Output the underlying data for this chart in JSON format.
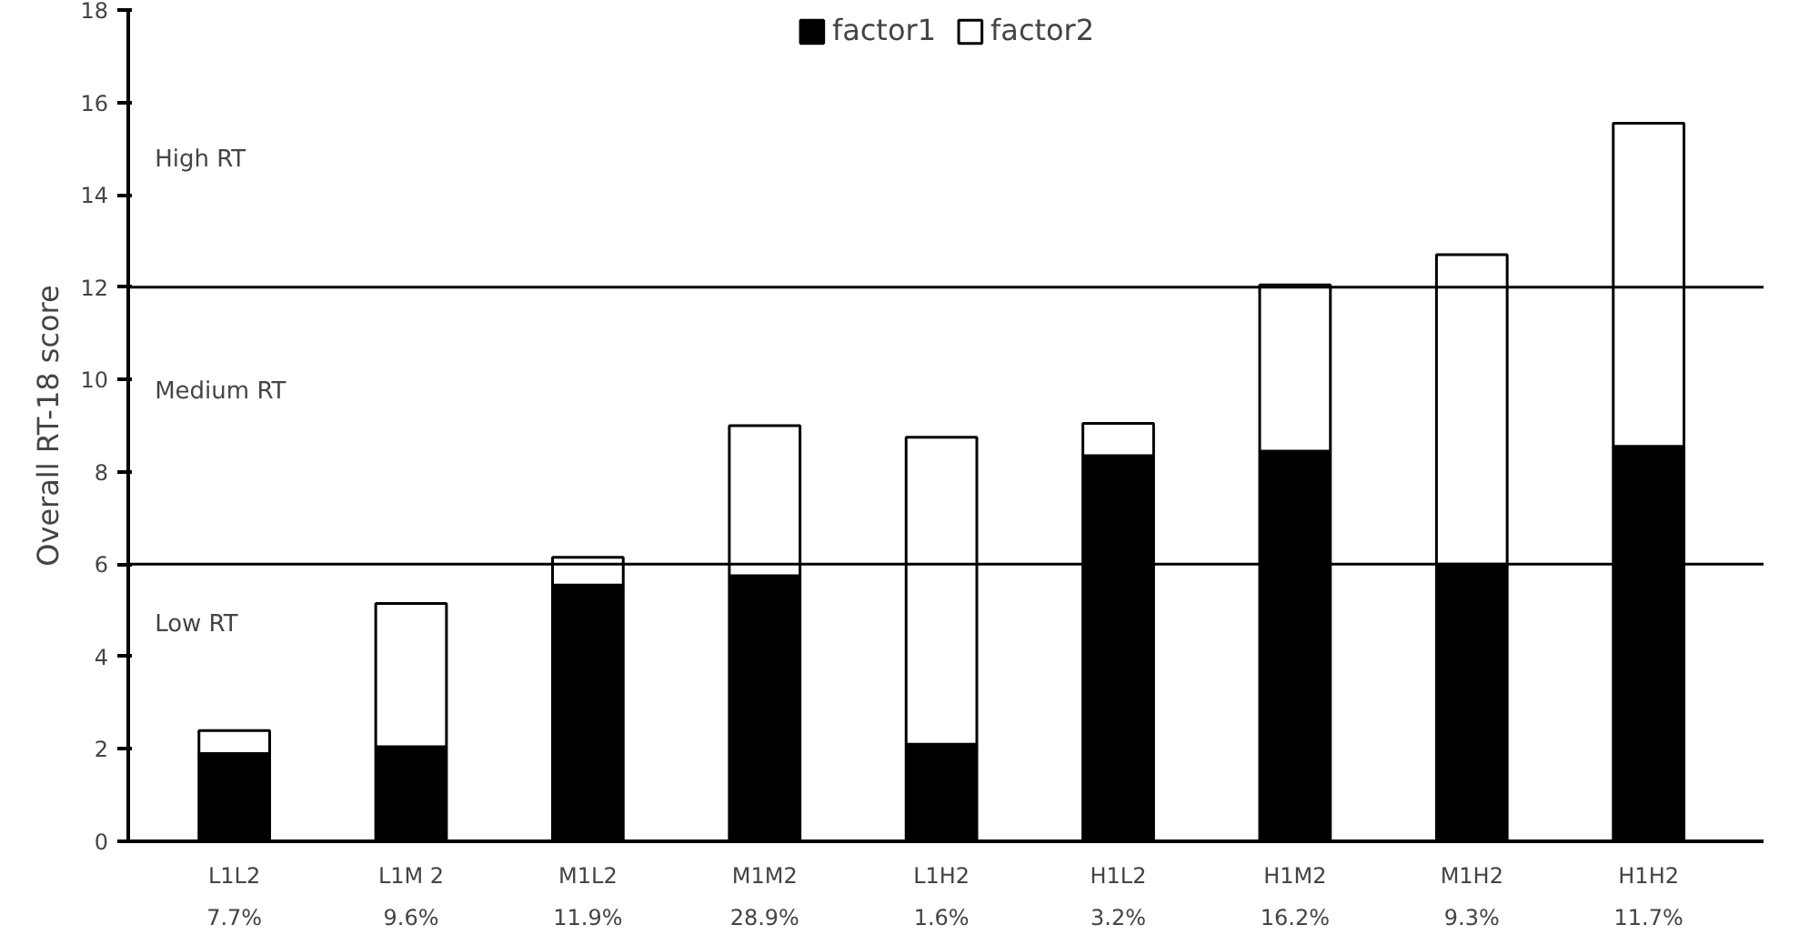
{
  "chart_data": {
    "type": "bar",
    "stacked": true,
    "ylabel": "Overall RT-18 score",
    "categories": [
      "L1L2\n7.7%",
      "L1M 2\n9.6%",
      "M1L2\n11.9%",
      "M1M2\n28.9%",
      "L1H2\n1.6%",
      "H1L2\n3.2%",
      "H1M2\n16.2%",
      "M1H2\n9.3%",
      "H1H2\n11.7%"
    ],
    "series": [
      {
        "name": "factor1",
        "color": "#000000",
        "values": [
          1.9,
          2.05,
          5.55,
          5.75,
          2.1,
          8.35,
          8.45,
          6.0,
          8.55
        ]
      },
      {
        "name": "factor2",
        "color": "#ffffff",
        "values": [
          0.5,
          3.1,
          0.6,
          3.25,
          6.65,
          0.7,
          3.6,
          6.7,
          7.0
        ]
      }
    ],
    "ylim": [
      0,
      18
    ],
    "yticks": [
      0,
      2,
      4,
      6,
      8,
      10,
      12,
      14,
      16,
      18
    ],
    "ref_lines": [
      {
        "axis": "y",
        "value": 6,
        "color": "#000000"
      },
      {
        "axis": "y",
        "value": 12,
        "color": "#000000"
      }
    ],
    "annotations": [
      "High RT",
      "Medium RT",
      "Low RT"
    ],
    "grid": false,
    "legend": "top"
  }
}
